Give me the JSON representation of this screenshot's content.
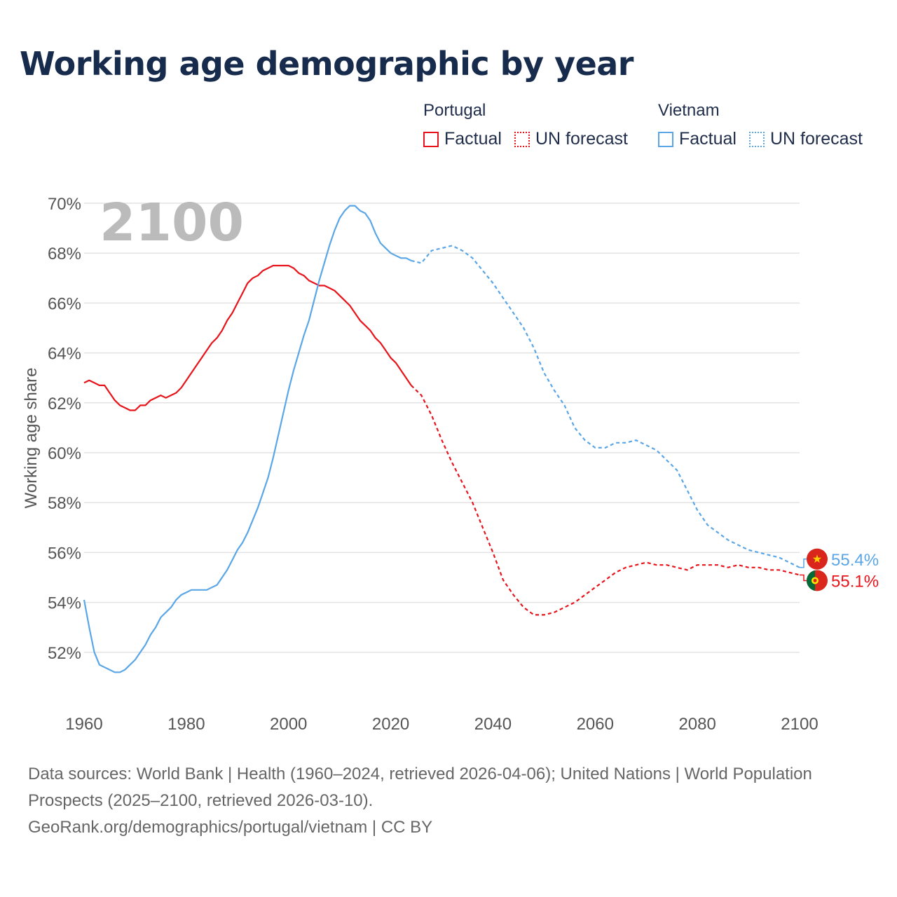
{
  "title": "Working age demographic by year",
  "legend": {
    "groups": [
      {
        "name": "Portugal",
        "factual": "Factual",
        "forecast": "UN forecast",
        "color": "#e8131b"
      },
      {
        "name": "Vietnam",
        "factual": "Factual",
        "forecast": "UN forecast",
        "color": "#5aa6e6"
      }
    ]
  },
  "year_watermark": "2100",
  "footer": {
    "line1": "Data sources: World Bank | Health (1960–2024, retrieved 2026-04-06); United Nations | World Population Prospects (2025–2100, retrieved 2026-03-10).",
    "line2": "GeoRank.org/demographics/portugal/vietnam | CC BY"
  },
  "chart_data": {
    "type": "line",
    "title": "Working age demographic by year",
    "xlabel": "",
    "ylabel": "Working age share",
    "xlim": [
      1960,
      2100
    ],
    "ylim": [
      50,
      70
    ],
    "x_ticks": [
      1960,
      1980,
      2000,
      2020,
      2040,
      2060,
      2080,
      2100
    ],
    "x_tick_labels": [
      "1960",
      "1980",
      "2000",
      "2020",
      "2040",
      "2060",
      "2080",
      "2100"
    ],
    "y_ticks": [
      52,
      54,
      56,
      58,
      60,
      62,
      64,
      66,
      68,
      70
    ],
    "y_tick_labels": [
      "52%",
      "54%",
      "56%",
      "58%",
      "60%",
      "62%",
      "64%",
      "66%",
      "68%",
      "70%"
    ],
    "grid": true,
    "series": [
      {
        "name": "Portugal",
        "color": "#e8131b",
        "flag": "portugal-flag",
        "end_label": "55.1%",
        "factual": {
          "x": [
            1960,
            1961,
            1962,
            1963,
            1964,
            1965,
            1966,
            1967,
            1968,
            1969,
            1970,
            1971,
            1972,
            1973,
            1974,
            1975,
            1976,
            1977,
            1978,
            1979,
            1980,
            1981,
            1982,
            1983,
            1984,
            1985,
            1986,
            1987,
            1988,
            1989,
            1990,
            1991,
            1992,
            1993,
            1994,
            1995,
            1996,
            1997,
            1998,
            1999,
            2000,
            2001,
            2002,
            2003,
            2004,
            2005,
            2006,
            2007,
            2008,
            2009,
            2010,
            2011,
            2012,
            2013,
            2014,
            2015,
            2016,
            2017,
            2018,
            2019,
            2020,
            2021,
            2022,
            2023,
            2024
          ],
          "y": [
            62.8,
            62.9,
            62.8,
            62.7,
            62.7,
            62.4,
            62.1,
            61.9,
            61.8,
            61.7,
            61.7,
            61.9,
            61.9,
            62.1,
            62.2,
            62.3,
            62.2,
            62.3,
            62.4,
            62.6,
            62.9,
            63.2,
            63.5,
            63.8,
            64.1,
            64.4,
            64.6,
            64.9,
            65.3,
            65.6,
            66.0,
            66.4,
            66.8,
            67.0,
            67.1,
            67.3,
            67.4,
            67.5,
            67.5,
            67.5,
            67.5,
            67.4,
            67.2,
            67.1,
            66.9,
            66.8,
            66.7,
            66.7,
            66.6,
            66.5,
            66.3,
            66.1,
            65.9,
            65.6,
            65.3,
            65.1,
            64.9,
            64.6,
            64.4,
            64.1,
            63.8,
            63.6,
            63.3,
            63.0,
            62.7
          ]
        },
        "forecast": {
          "x": [
            2024,
            2026,
            2028,
            2030,
            2032,
            2034,
            2036,
            2038,
            2040,
            2042,
            2044,
            2046,
            2048,
            2050,
            2052,
            2054,
            2056,
            2058,
            2060,
            2062,
            2064,
            2066,
            2068,
            2070,
            2072,
            2074,
            2076,
            2078,
            2080,
            2082,
            2084,
            2086,
            2088,
            2090,
            2092,
            2094,
            2096,
            2098,
            2100
          ],
          "y": [
            62.7,
            62.3,
            61.5,
            60.5,
            59.6,
            58.8,
            58.0,
            57.0,
            56.0,
            54.9,
            54.3,
            53.8,
            53.5,
            53.5,
            53.6,
            53.8,
            54.0,
            54.3,
            54.6,
            54.9,
            55.2,
            55.4,
            55.5,
            55.6,
            55.5,
            55.5,
            55.4,
            55.3,
            55.5,
            55.5,
            55.5,
            55.4,
            55.5,
            55.4,
            55.4,
            55.3,
            55.3,
            55.2,
            55.1
          ]
        }
      },
      {
        "name": "Vietnam",
        "color": "#5aa6e6",
        "flag": "vietnam-flag",
        "end_label": "55.4%",
        "factual": {
          "x": [
            1960,
            1961,
            1962,
            1963,
            1964,
            1965,
            1966,
            1967,
            1968,
            1969,
            1970,
            1971,
            1972,
            1973,
            1974,
            1975,
            1976,
            1977,
            1978,
            1979,
            1980,
            1981,
            1982,
            1983,
            1984,
            1985,
            1986,
            1987,
            1988,
            1989,
            1990,
            1991,
            1992,
            1993,
            1994,
            1995,
            1996,
            1997,
            1998,
            1999,
            2000,
            2001,
            2002,
            2003,
            2004,
            2005,
            2006,
            2007,
            2008,
            2009,
            2010,
            2011,
            2012,
            2013,
            2014,
            2015,
            2016,
            2017,
            2018,
            2019,
            2020,
            2021,
            2022,
            2023,
            2024
          ],
          "y": [
            54.1,
            53.0,
            52.0,
            51.5,
            51.4,
            51.3,
            51.2,
            51.2,
            51.3,
            51.5,
            51.7,
            52.0,
            52.3,
            52.7,
            53.0,
            53.4,
            53.6,
            53.8,
            54.1,
            54.3,
            54.4,
            54.5,
            54.5,
            54.5,
            54.5,
            54.6,
            54.7,
            55.0,
            55.3,
            55.7,
            56.1,
            56.4,
            56.8,
            57.3,
            57.8,
            58.4,
            59.0,
            59.8,
            60.7,
            61.6,
            62.5,
            63.3,
            64.0,
            64.7,
            65.3,
            66.1,
            66.9,
            67.6,
            68.3,
            68.9,
            69.4,
            69.7,
            69.9,
            69.9,
            69.7,
            69.6,
            69.3,
            68.8,
            68.4,
            68.2,
            68.0,
            67.9,
            67.8,
            67.8,
            67.7
          ]
        },
        "forecast": {
          "x": [
            2024,
            2026,
            2028,
            2030,
            2032,
            2034,
            2036,
            2038,
            2040,
            2042,
            2044,
            2046,
            2048,
            2050,
            2052,
            2054,
            2056,
            2058,
            2060,
            2062,
            2064,
            2066,
            2068,
            2070,
            2072,
            2074,
            2076,
            2078,
            2080,
            2082,
            2084,
            2086,
            2088,
            2090,
            2092,
            2094,
            2096,
            2098,
            2100
          ],
          "y": [
            67.7,
            67.6,
            68.1,
            68.2,
            68.3,
            68.1,
            67.8,
            67.3,
            66.8,
            66.2,
            65.6,
            65.0,
            64.2,
            63.2,
            62.5,
            61.9,
            61.0,
            60.5,
            60.2,
            60.2,
            60.4,
            60.4,
            60.5,
            60.3,
            60.1,
            59.7,
            59.3,
            58.5,
            57.7,
            57.1,
            56.8,
            56.5,
            56.3,
            56.1,
            56.0,
            55.9,
            55.8,
            55.6,
            55.4
          ]
        }
      }
    ]
  }
}
